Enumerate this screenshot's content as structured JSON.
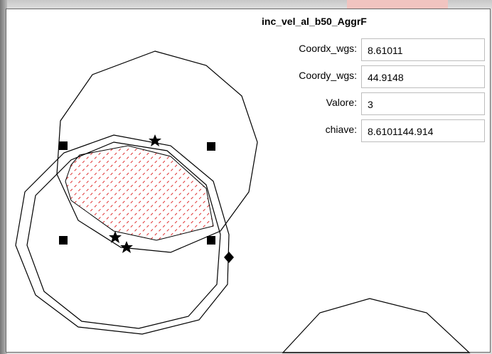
{
  "panel": {
    "title": "inc_vel_al_b50_AggrF",
    "fields": [
      {
        "label": "Coordx_wgs:",
        "value": "8.61011"
      },
      {
        "label": "Coordy_wgs:",
        "value": "44.9148"
      },
      {
        "label": "Valore:",
        "value": "3"
      },
      {
        "label": "chiave:",
        "value": "8.6101144.914"
      }
    ]
  }
}
